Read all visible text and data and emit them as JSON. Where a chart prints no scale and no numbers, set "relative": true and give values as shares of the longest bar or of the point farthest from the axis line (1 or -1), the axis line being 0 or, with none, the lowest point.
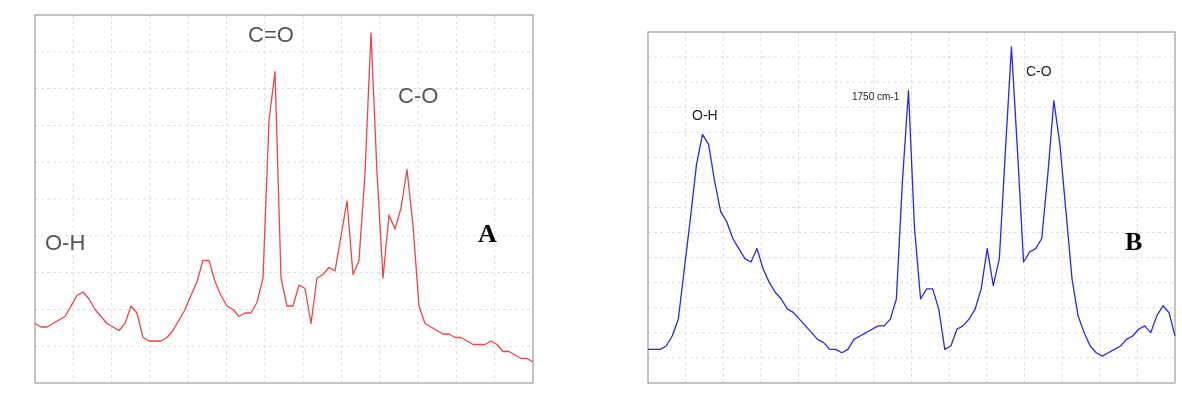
{
  "chart_data": [
    {
      "type": "line",
      "relative": true,
      "grid": true,
      "categories": [
        null,
        null,
        null,
        null,
        null,
        null,
        null,
        null,
        null,
        null,
        null,
        null,
        null,
        null,
        null,
        null,
        null,
        null,
        null,
        null,
        null,
        null,
        null,
        null,
        null,
        null,
        null,
        null,
        null,
        null,
        null,
        null,
        null,
        null,
        null,
        null,
        null,
        null,
        null,
        null,
        null,
        null,
        null,
        null,
        null,
        null,
        null,
        null,
        null,
        null,
        null,
        null,
        null,
        null,
        null,
        null,
        null,
        null,
        null,
        null,
        null,
        null,
        null,
        null,
        null,
        null,
        null,
        null,
        null,
        null,
        null,
        null,
        null,
        null,
        null,
        null,
        null,
        null,
        null,
        null,
        null,
        null,
        null,
        null
      ],
      "series": [
        {
          "color": "#e8474a",
          "values": [
            0.17,
            0.16,
            0.16,
            0.17,
            0.18,
            0.19,
            0.22,
            0.25,
            0.26,
            0.24,
            0.21,
            0.19,
            0.17,
            0.16,
            0.15,
            0.17,
            0.22,
            0.2,
            0.13,
            0.12,
            0.12,
            0.12,
            0.13,
            0.15,
            0.18,
            0.21,
            0.25,
            0.29,
            0.35,
            0.35,
            0.29,
            0.25,
            0.22,
            0.21,
            0.19,
            0.2,
            0.2,
            0.23,
            0.3,
            0.75,
            0.89,
            0.3,
            0.22,
            0.22,
            0.28,
            0.27,
            0.17,
            0.3,
            0.31,
            0.33,
            0.32,
            0.42,
            0.52,
            0.31,
            0.35,
            0.6,
            1,
            0.6,
            0.3,
            0.48,
            0.44,
            0.5,
            0.61,
            0.45,
            0.22,
            0.17,
            0.16,
            0.15,
            0.14,
            0.14,
            0.13,
            0.13,
            0.12,
            0.11,
            0.11,
            0.11,
            0.12,
            0.11,
            0.09,
            0.09,
            0.08,
            0.07,
            0.07,
            0.06
          ]
        }
      ],
      "annotations": [
        "O-H",
        "C=O",
        "C-O",
        "A"
      ]
    },
    {
      "type": "line",
      "relative": true,
      "grid": true,
      "categories": [
        null,
        null,
        null,
        null,
        null,
        null,
        null,
        null,
        null,
        null,
        null,
        null,
        null,
        null,
        null,
        null,
        null,
        null,
        null,
        null,
        null,
        null,
        null,
        null,
        null,
        null,
        null,
        null,
        null,
        null,
        null,
        null,
        null,
        null,
        null,
        null,
        null,
        null,
        null,
        null,
        null,
        null,
        null,
        null,
        null,
        null,
        null,
        null,
        null,
        null,
        null,
        null,
        null,
        null,
        null,
        null,
        null,
        null,
        null,
        null,
        null,
        null,
        null,
        null,
        null,
        null,
        null,
        null,
        null,
        null,
        null,
        null,
        null,
        null,
        null,
        null,
        null,
        null,
        null,
        null,
        null,
        null,
        null,
        null,
        null,
        null,
        null,
        null
      ],
      "series": [
        {
          "color": "#2a2ae0",
          "values": [
            0.1,
            0.1,
            0.1,
            0.11,
            0.14,
            0.19,
            0.34,
            0.49,
            0.65,
            0.74,
            0.71,
            0.6,
            0.51,
            0.48,
            0.43,
            0.4,
            0.37,
            0.36,
            0.4,
            0.34,
            0.3,
            0.27,
            0.25,
            0.22,
            0.21,
            0.19,
            0.17,
            0.15,
            0.13,
            0.12,
            0.1,
            0.1,
            0.09,
            0.1,
            0.13,
            0.14,
            0.15,
            0.16,
            0.17,
            0.17,
            0.19,
            0.25,
            0.6,
            0.87,
            0.46,
            0.25,
            0.28,
            0.28,
            0.22,
            0.1,
            0.11,
            0.16,
            0.17,
            0.19,
            0.22,
            0.28,
            0.4,
            0.29,
            0.37,
            0.69,
            1,
            0.69,
            0.36,
            0.39,
            0.4,
            0.43,
            0.62,
            0.84,
            0.71,
            0.51,
            0.31,
            0.2,
            0.15,
            0.11,
            0.09,
            0.08,
            0.09,
            0.1,
            0.11,
            0.13,
            0.14,
            0.16,
            0.17,
            0.15,
            0.2,
            0.23,
            0.21,
            0.14
          ]
        }
      ],
      "annotations": [
        "O-H",
        "1750 cm-1",
        "C-O",
        "B"
      ]
    }
  ]
}
